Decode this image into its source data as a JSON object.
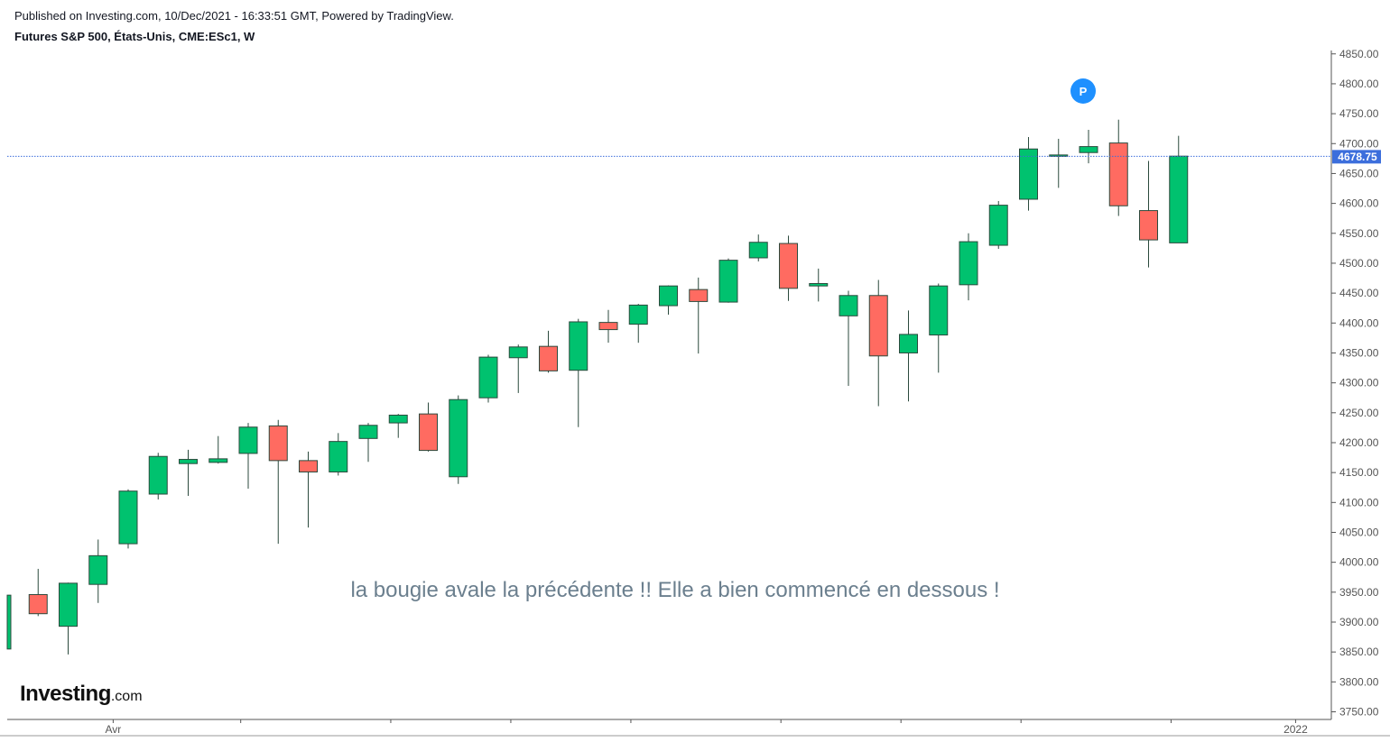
{
  "header": {
    "published": "Published on Investing.com, 10/Dec/2021 - 16:33:51 GMT, Powered by TradingView.",
    "instrument": "Futures S&P 500, États-Unis, CME:ESc1, W"
  },
  "logo": {
    "brand": "Investing",
    "suffix": ".com"
  },
  "colors": {
    "up": "#00c26f",
    "down": "#ff6b61",
    "wick": "#2b4a3d",
    "last_price_line": "#3c6edc",
    "pivot": "#1e90ff"
  },
  "chart_data": {
    "type": "candlestick",
    "timeframe": "W",
    "ylim": [
      3740,
      4856
    ],
    "y_ticks": [
      3750,
      3800,
      3850,
      3900,
      3950,
      4000,
      4050,
      4100,
      4150,
      4200,
      4250,
      4300,
      4350,
      4400,
      4450,
      4500,
      4550,
      4600,
      4650,
      4700,
      4750,
      4800,
      4850
    ],
    "x_labels": [
      {
        "label": "Avr",
        "index": 3.5
      },
      {
        "label": "2022",
        "index": 42.9
      }
    ],
    "last_price": {
      "value": 4678.75,
      "label": "4678.75"
    },
    "pivot_marker": {
      "label": "P",
      "index": 36,
      "value": 4798
    },
    "annotation": "la bougie avale la précédente !! Elle a bien commencé en dessous !",
    "candles": [
      {
        "o": 3855,
        "h": 3945,
        "l": 3855,
        "c": 3945
      },
      {
        "o": 3946,
        "h": 3989,
        "l": 3910,
        "c": 3914
      },
      {
        "o": 3893,
        "h": 3966,
        "l": 3846,
        "c": 3965
      },
      {
        "o": 3963,
        "h": 4038,
        "l": 3932,
        "c": 4011
      },
      {
        "o": 4031,
        "h": 4122,
        "l": 4023,
        "c": 4119
      },
      {
        "o": 4114,
        "h": 4183,
        "l": 4105,
        "c": 4177
      },
      {
        "o": 4165,
        "h": 4188,
        "l": 4111,
        "c": 4172
      },
      {
        "o": 4167,
        "h": 4211,
        "l": 4165,
        "c": 4173
      },
      {
        "o": 4182,
        "h": 4233,
        "l": 4123,
        "c": 4226
      },
      {
        "o": 4228,
        "h": 4238,
        "l": 4031,
        "c": 4170
      },
      {
        "o": 4170,
        "h": 4185,
        "l": 4058,
        "c": 4151
      },
      {
        "o": 4151,
        "h": 4216,
        "l": 4145,
        "c": 4202
      },
      {
        "o": 4207,
        "h": 4233,
        "l": 4168,
        "c": 4229
      },
      {
        "o": 4233,
        "h": 4248,
        "l": 4208,
        "c": 4246
      },
      {
        "o": 4248,
        "h": 4267,
        "l": 4185,
        "c": 4187
      },
      {
        "o": 4143,
        "h": 4279,
        "l": 4131,
        "c": 4272
      },
      {
        "o": 4275,
        "h": 4347,
        "l": 4267,
        "c": 4343
      },
      {
        "o": 4342,
        "h": 4364,
        "l": 4283,
        "c": 4360
      },
      {
        "o": 4361,
        "h": 4387,
        "l": 4317,
        "c": 4320
      },
      {
        "o": 4321,
        "h": 4407,
        "l": 4226,
        "c": 4402
      },
      {
        "o": 4401,
        "h": 4422,
        "l": 4367,
        "c": 4389
      },
      {
        "o": 4398,
        "h": 4432,
        "l": 4367,
        "c": 4430
      },
      {
        "o": 4429,
        "h": 4463,
        "l": 4414,
        "c": 4462
      },
      {
        "o": 4456,
        "h": 4476,
        "l": 4349,
        "c": 4436
      },
      {
        "o": 4435,
        "h": 4508,
        "l": 4434,
        "c": 4505
      },
      {
        "o": 4509,
        "h": 4548,
        "l": 4503,
        "c": 4535
      },
      {
        "o": 4533,
        "h": 4546,
        "l": 4437,
        "c": 4458
      },
      {
        "o": 4462,
        "h": 4491,
        "l": 4436,
        "c": 4466
      },
      {
        "o": 4412,
        "h": 4454,
        "l": 4295,
        "c": 4446
      },
      {
        "o": 4446,
        "h": 4472,
        "l": 4261,
        "c": 4345
      },
      {
        "o": 4350,
        "h": 4421,
        "l": 4269,
        "c": 4381
      },
      {
        "o": 4380,
        "h": 4466,
        "l": 4317,
        "c": 4462
      },
      {
        "o": 4464,
        "h": 4550,
        "l": 4438,
        "c": 4536
      },
      {
        "o": 4530,
        "h": 4604,
        "l": 4524,
        "c": 4597
      },
      {
        "o": 4607,
        "h": 4711,
        "l": 4588,
        "c": 4691
      },
      {
        "o": 4680,
        "h": 4708,
        "l": 4626,
        "c": 4681
      },
      {
        "o": 4685,
        "h": 4723,
        "l": 4667,
        "c": 4695
      },
      {
        "o": 4701,
        "h": 4740,
        "l": 4579,
        "c": 4596
      },
      {
        "o": 4588,
        "h": 4671,
        "l": 4493,
        "c": 4539
      },
      {
        "o": 4534,
        "h": 4713,
        "l": 4534,
        "c": 4679
      }
    ]
  }
}
